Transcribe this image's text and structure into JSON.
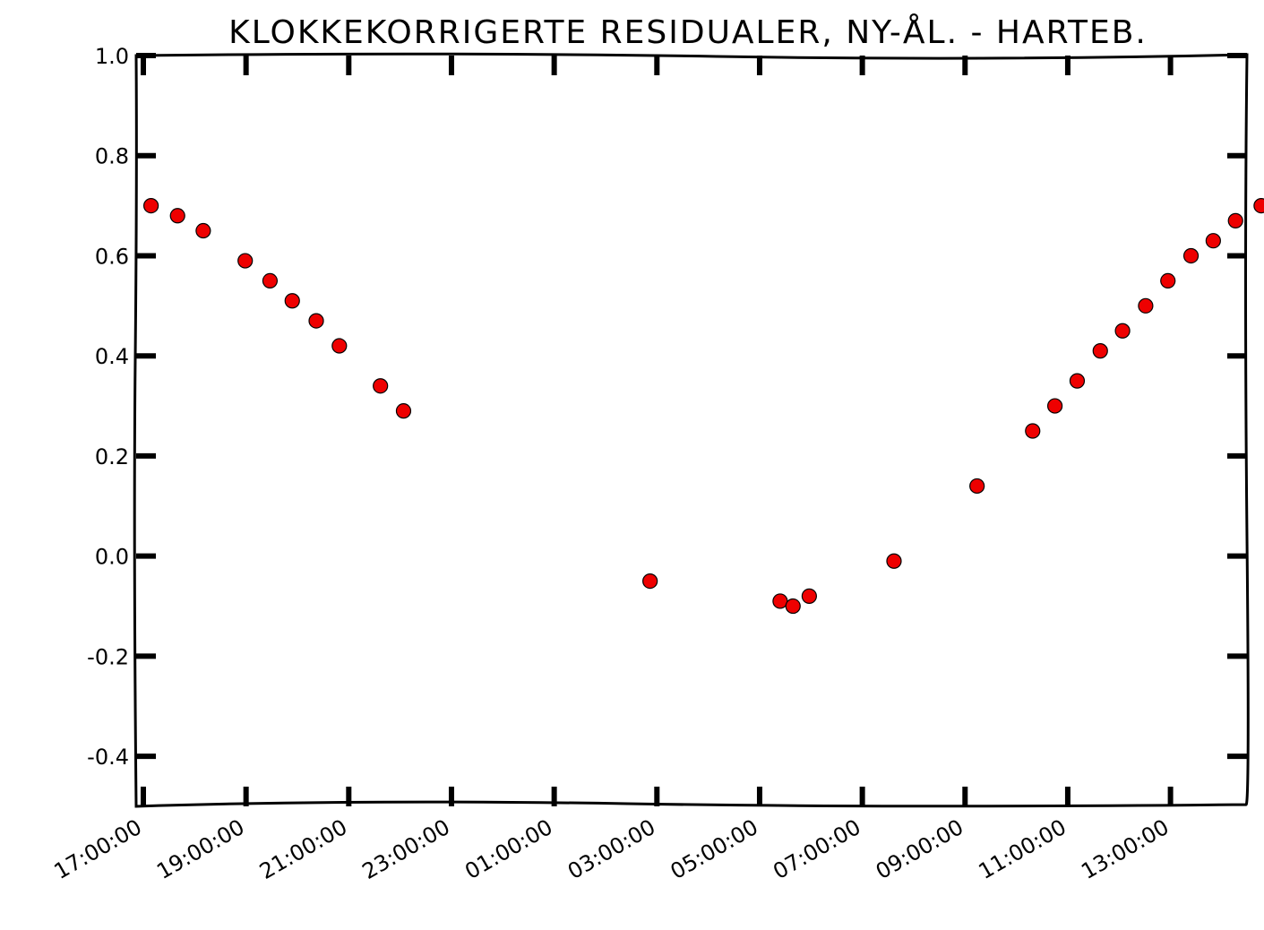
{
  "chart_data": {
    "type": "scatter",
    "title": "KLOKKEKORRIGERTE RESIDUALER, NY-ÅL. - HARTEB.",
    "xlabel": "",
    "ylabel": "",
    "x_tick_labels": [
      "17:00:00",
      "19:00:00",
      "21:00:00",
      "23:00:00",
      "01:00:00",
      "03:00:00",
      "05:00:00",
      "07:00:00",
      "09:00:00",
      "11:00:00",
      "13:00:00"
    ],
    "y_tick_labels": [
      "1.0",
      "0.8",
      "0.6",
      "0.4",
      "0.2",
      "0.0",
      "-0.2",
      "-0.4"
    ],
    "ylim": [
      -0.5,
      1.0
    ],
    "grid": false,
    "marker_color": "#ee0000",
    "series": [
      {
        "x": [
          "17:09",
          "17:40",
          "18:10",
          "18:59",
          "19:28",
          "19:54",
          "20:22",
          "20:49",
          "21:37",
          "22:04",
          "02:52",
          "05:24",
          "05:39",
          "05:58",
          "07:37",
          "09:14",
          "10:19",
          "10:45",
          "11:11",
          "11:38",
          "12:04",
          "12:31",
          "12:57",
          "13:24",
          "13:50",
          "14:16",
          "14:46"
        ],
        "y": [
          0.7,
          0.68,
          0.65,
          0.59,
          0.55,
          0.51,
          0.47,
          0.42,
          0.34,
          0.29,
          -0.05,
          -0.09,
          -0.1,
          -0.08,
          -0.01,
          0.14,
          0.25,
          0.3,
          0.35,
          0.41,
          0.45,
          0.5,
          0.55,
          0.6,
          0.63,
          0.67,
          0.7
        ]
      }
    ]
  }
}
